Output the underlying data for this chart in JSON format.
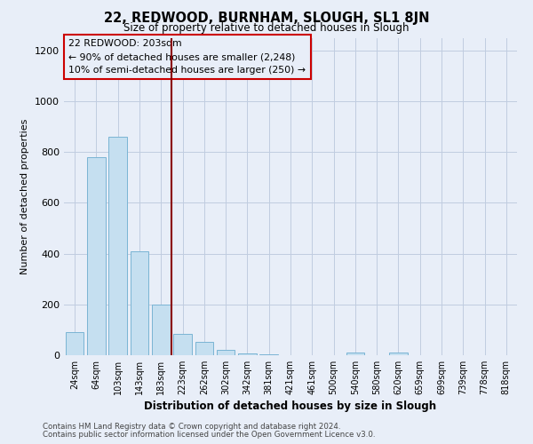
{
  "title": "22, REDWOOD, BURNHAM, SLOUGH, SL1 8JN",
  "subtitle": "Size of property relative to detached houses in Slough",
  "xlabel": "Distribution of detached houses by size in Slough",
  "ylabel": "Number of detached properties",
  "footer_line1": "Contains HM Land Registry data © Crown copyright and database right 2024.",
  "footer_line2": "Contains public sector information licensed under the Open Government Licence v3.0.",
  "bar_labels": [
    "24sqm",
    "64sqm",
    "103sqm",
    "143sqm",
    "183sqm",
    "223sqm",
    "262sqm",
    "302sqm",
    "342sqm",
    "381sqm",
    "421sqm",
    "461sqm",
    "500sqm",
    "540sqm",
    "580sqm",
    "620sqm",
    "659sqm",
    "699sqm",
    "739sqm",
    "778sqm",
    "818sqm"
  ],
  "bar_values": [
    90,
    780,
    860,
    410,
    200,
    85,
    52,
    20,
    8,
    2,
    0,
    0,
    0,
    10,
    0,
    10,
    0,
    0,
    0,
    0,
    0
  ],
  "bar_color": "#c5dff0",
  "bar_edgecolor": "#7ab4d4",
  "vline_x": 4.5,
  "vline_color": "#8b0000",
  "annotation_box_text": "22 REDWOOD: 203sqm\n← 90% of detached houses are smaller (2,248)\n10% of semi-detached houses are larger (250) →",
  "annotation_box_edgecolor": "#cc0000",
  "ylim": [
    0,
    1250
  ],
  "yticks": [
    0,
    200,
    400,
    600,
    800,
    1000,
    1200
  ],
  "bg_color": "#e8eef8",
  "grid_color": "#c0cce0"
}
